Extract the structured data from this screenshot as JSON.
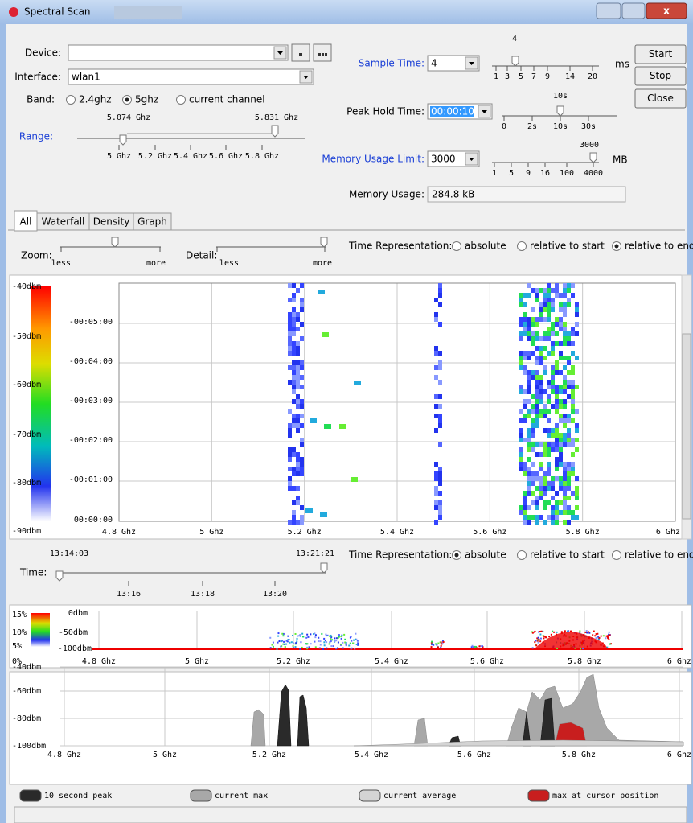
{
  "window": {
    "title": "Spectral Scan"
  },
  "controls": {
    "device": {
      "label": "Device:"
    },
    "interface": {
      "label": "Interface:",
      "value": "wlan1"
    },
    "band": {
      "label": "Band:",
      "options": [
        "2.4ghz",
        "5ghz",
        "current channel"
      ],
      "selected": "5ghz"
    },
    "range": {
      "label": "Range:",
      "low": "5.074 Ghz",
      "high": "5.831 Ghz",
      "ticks": [
        "5 Ghz",
        "5.2 Ghz",
        "5.4 Ghz",
        "5.6 Ghz",
        "5.8 Ghz"
      ]
    },
    "sample_time": {
      "label": "Sample Time:",
      "value": "4",
      "slider_value": "4",
      "ticks": [
        "1",
        "3",
        "5",
        "7",
        "9",
        "14",
        "20"
      ],
      "unit": "ms"
    },
    "peak_hold_time": {
      "label": "Peak Hold Time:",
      "value": "00:00:10",
      "slider_value": "10s",
      "ticks": [
        "0",
        "2s",
        "10s",
        "30s"
      ]
    },
    "memory_usage_limit": {
      "label": "Memory Usage Limit:",
      "value": "3000",
      "slider_value": "3000",
      "ticks": [
        "1",
        "5",
        "9",
        "16",
        "100",
        "4000"
      ],
      "unit": "MB"
    },
    "memory_usage": {
      "label": "Memory Usage:",
      "value": "284.8 kB"
    },
    "buttons": [
      "Start",
      "Stop",
      "Close"
    ]
  },
  "tabs": {
    "items": [
      "All",
      "Waterfall",
      "Density",
      "Graph"
    ],
    "selected": "All"
  },
  "view": {
    "zoom": {
      "label": "Zoom:",
      "min": "less",
      "max": "more"
    },
    "detail": {
      "label": "Detail:",
      "min": "less",
      "max": "more"
    },
    "time_representation": {
      "label": "Time Representation:",
      "options": [
        "absolute",
        "relative to start",
        "relative to end"
      ],
      "selected": "relative to end"
    }
  },
  "waterfall": {
    "levels": [
      "-40dbm",
      "-50dbm",
      "-60dbm",
      "-70dbm",
      "-80dbm",
      "-90dbm"
    ],
    "times": [
      "-00:05:00",
      "-00:04:00",
      "-00:03:00",
      "-00:02:00",
      "-00:01:00",
      "00:00:00"
    ],
    "frequencies": [
      "4.8 Ghz",
      "5 Ghz",
      "5.2 Ghz",
      "5.4 Ghz",
      "5.6 Ghz",
      "5.8 Ghz",
      "6 Ghz"
    ]
  },
  "time": {
    "label": "Time:",
    "start": "13:14:03",
    "end": "13:21:21",
    "ticks": [
      "13:16",
      "13:18",
      "13:20"
    ],
    "time_representation": {
      "label": "Time Representation:",
      "options": [
        "absolute",
        "relative to start",
        "relative to end"
      ],
      "selected": "absolute"
    }
  },
  "density": {
    "percents": [
      "15%",
      "10%",
      "5%",
      "0%"
    ],
    "levels": [
      "0dbm",
      "-50dbm",
      "-100dbm"
    ],
    "frequencies": [
      "4.8 Ghz",
      "5 Ghz",
      "5.2 Ghz",
      "5.4 Ghz",
      "5.6 Ghz",
      "5.8 Ghz",
      "6 Ghz"
    ]
  },
  "graph": {
    "levels": [
      "-40dbm",
      "-60dbm",
      "-80dbm",
      "-100dbm"
    ],
    "frequencies": [
      "4.8 Ghz",
      "5 Ghz",
      "5.2 Ghz",
      "5.4 Ghz",
      "5.6 Ghz",
      "5.8 Ghz",
      "6 Ghz"
    ]
  },
  "legend": [
    {
      "label": "10 second peak",
      "color": "#2a2a2a"
    },
    {
      "label": "current max",
      "color": "#a8a8a8"
    },
    {
      "label": "current average",
      "color": "#d4d4d4"
    },
    {
      "label": "max at cursor position",
      "color": "#c81e1e"
    }
  ]
}
